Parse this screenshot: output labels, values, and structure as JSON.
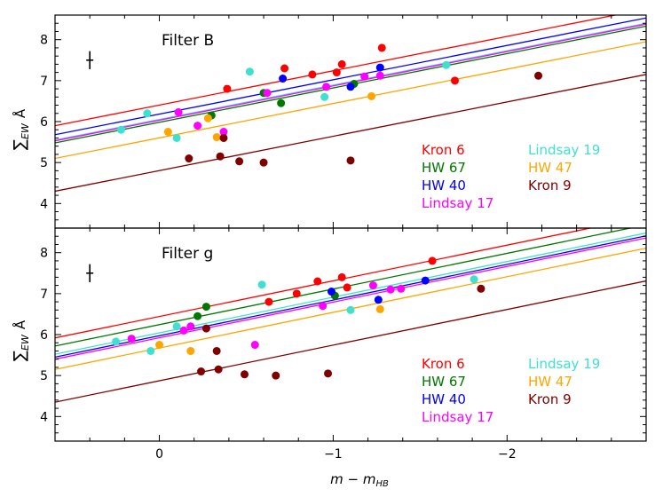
{
  "chart_data": [
    {
      "type": "scatter",
      "panel_label": "Filter B",
      "xlabel": "m − m_HB",
      "ylabel": "ΣEW Å",
      "xlim": [
        0.6,
        -2.8
      ],
      "ylim": [
        3.4,
        8.6
      ],
      "x_ticks": [
        {
          "v": 0,
          "label": "0"
        },
        {
          "v": -1,
          "label": "−1"
        },
        {
          "v": -2,
          "label": "−2"
        }
      ],
      "y_ticks": [
        4,
        5,
        6,
        7,
        8
      ],
      "show_x_tick_labels": false,
      "error_bar": {
        "x": 0.4,
        "y": 7.5,
        "dy": 0.22
      },
      "lines": [
        {
          "cluster": "Kron 6",
          "x0": 0.6,
          "y0": 5.9,
          "x1": -2.8,
          "y1": 8.75
        },
        {
          "cluster": "Lindsay 19",
          "x0": 0.6,
          "y0": 5.55,
          "x1": -2.8,
          "y1": 8.4
        },
        {
          "cluster": "HW 67",
          "x0": 0.6,
          "y0": 5.48,
          "x1": -2.8,
          "y1": 8.33
        },
        {
          "cluster": "HW 40",
          "x0": 0.6,
          "y0": 5.68,
          "x1": -2.8,
          "y1": 8.53
        },
        {
          "cluster": "Lindsay 17",
          "x0": 0.6,
          "y0": 5.53,
          "x1": -2.8,
          "y1": 8.38
        },
        {
          "cluster": "HW 47",
          "x0": 0.6,
          "y0": 5.1,
          "x1": -2.8,
          "y1": 7.95
        },
        {
          "cluster": "Kron 9",
          "x0": 0.6,
          "y0": 4.3,
          "x1": -2.8,
          "y1": 7.15
        }
      ],
      "series": [
        {
          "name": "Kron 6",
          "points": [
            [
              -0.39,
              6.8
            ],
            [
              -0.72,
              7.3
            ],
            [
              -0.88,
              7.15
            ],
            [
              -1.05,
              7.4
            ],
            [
              -1.02,
              7.2
            ],
            [
              -1.28,
              7.8
            ],
            [
              -1.7,
              7.0
            ]
          ]
        },
        {
          "name": "HW 67",
          "points": [
            [
              -0.3,
              6.15
            ],
            [
              -0.6,
              6.7
            ],
            [
              -0.7,
              6.45
            ],
            [
              -1.12,
              6.92
            ]
          ]
        },
        {
          "name": "HW 40",
          "points": [
            [
              -0.71,
              7.05
            ],
            [
              -1.1,
              6.85
            ],
            [
              -1.27,
              7.32
            ]
          ]
        },
        {
          "name": "Lindsay 17",
          "points": [
            [
              -0.11,
              6.23
            ],
            [
              -0.22,
              5.9
            ],
            [
              -0.37,
              5.75
            ],
            [
              -0.62,
              6.7
            ],
            [
              -0.96,
              6.85
            ],
            [
              -1.18,
              7.1
            ],
            [
              -1.27,
              7.12
            ]
          ]
        },
        {
          "name": "Lindsay 19",
          "points": [
            [
              0.07,
              6.2
            ],
            [
              0.22,
              5.8
            ],
            [
              -0.1,
              5.6
            ],
            [
              -0.52,
              7.22
            ],
            [
              -0.95,
              6.6
            ],
            [
              -1.65,
              7.38
            ]
          ]
        },
        {
          "name": "HW 47",
          "points": [
            [
              -0.05,
              5.75
            ],
            [
              -0.28,
              6.08
            ],
            [
              -0.33,
              5.62
            ],
            [
              -1.22,
              6.62
            ]
          ]
        },
        {
          "name": "Kron 9",
          "points": [
            [
              -0.17,
              5.1
            ],
            [
              -0.35,
              5.15
            ],
            [
              -0.37,
              5.6
            ],
            [
              -0.46,
              5.03
            ],
            [
              -0.6,
              5.0
            ],
            [
              -1.1,
              5.05
            ],
            [
              -2.18,
              7.12
            ]
          ]
        }
      ],
      "legend": [
        "Kron 6",
        "HW 67",
        "HW 40",
        "Lindsay 17",
        "Lindsay 19",
        "HW 47",
        "Kron 9"
      ]
    },
    {
      "type": "scatter",
      "panel_label": "Filter g",
      "xlabel": "m − m_HB",
      "ylabel": "ΣEW Å",
      "xlim": [
        0.6,
        -2.8
      ],
      "ylim": [
        3.4,
        8.6
      ],
      "x_ticks": [
        {
          "v": 0,
          "label": "0"
        },
        {
          "v": -1,
          "label": "−1"
        },
        {
          "v": -2,
          "label": "−2"
        }
      ],
      "y_ticks": [
        4,
        5,
        6,
        7,
        8
      ],
      "show_x_tick_labels": true,
      "error_bar": {
        "x": 0.4,
        "y": 7.5,
        "dy": 0.22
      },
      "lines": [
        {
          "cluster": "Kron 6",
          "x0": 0.6,
          "y0": 5.92,
          "x1": -2.8,
          "y1": 8.88
        },
        {
          "cluster": "HW 67",
          "x0": 0.6,
          "y0": 5.72,
          "x1": -2.8,
          "y1": 8.68
        },
        {
          "cluster": "Lindsay 19",
          "x0": 0.6,
          "y0": 5.52,
          "x1": -2.8,
          "y1": 8.48
        },
        {
          "cluster": "HW 40",
          "x0": 0.6,
          "y0": 5.45,
          "x1": -2.8,
          "y1": 8.41
        },
        {
          "cluster": "Lindsay 17",
          "x0": 0.6,
          "y0": 5.4,
          "x1": -2.8,
          "y1": 8.36
        },
        {
          "cluster": "HW 47",
          "x0": 0.6,
          "y0": 5.15,
          "x1": -2.8,
          "y1": 8.11
        },
        {
          "cluster": "Kron 9",
          "x0": 0.6,
          "y0": 4.35,
          "x1": -2.8,
          "y1": 7.31
        }
      ],
      "series": [
        {
          "name": "Kron 6",
          "points": [
            [
              -0.63,
              6.8
            ],
            [
              -0.79,
              7.0
            ],
            [
              -0.91,
              7.3
            ],
            [
              -1.05,
              7.4
            ],
            [
              -1.08,
              7.15
            ],
            [
              -1.57,
              7.8
            ]
          ]
        },
        {
          "name": "HW 67",
          "points": [
            [
              -0.27,
              6.68
            ],
            [
              -0.22,
              6.45
            ],
            [
              -1.01,
              6.95
            ]
          ]
        },
        {
          "name": "HW 40",
          "points": [
            [
              -0.99,
              7.05
            ],
            [
              -1.26,
              6.85
            ],
            [
              -1.53,
              7.32
            ]
          ]
        },
        {
          "name": "Lindsay 17",
          "points": [
            [
              0.16,
              5.9
            ],
            [
              -0.18,
              6.2
            ],
            [
              -0.14,
              6.1
            ],
            [
              -0.55,
              5.75
            ],
            [
              -0.94,
              6.7
            ],
            [
              -1.33,
              7.1
            ],
            [
              -1.39,
              7.12
            ],
            [
              -1.23,
              7.2
            ]
          ]
        },
        {
          "name": "Lindsay 19",
          "points": [
            [
              0.25,
              5.83
            ],
            [
              -0.1,
              6.2
            ],
            [
              0.05,
              5.6
            ],
            [
              -0.59,
              7.22
            ],
            [
              -1.1,
              6.6
            ],
            [
              -1.81,
              7.35
            ]
          ]
        },
        {
          "name": "HW 47",
          "points": [
            [
              -0.18,
              5.6
            ],
            [
              0.0,
              5.75
            ],
            [
              -1.27,
              6.62
            ]
          ]
        },
        {
          "name": "Kron 9",
          "points": [
            [
              -0.24,
              5.1
            ],
            [
              -0.34,
              5.15
            ],
            [
              -0.33,
              5.6
            ],
            [
              -0.49,
              5.03
            ],
            [
              -0.67,
              5.0
            ],
            [
              -0.97,
              5.05
            ],
            [
              -1.85,
              7.12
            ],
            [
              -0.27,
              6.15
            ]
          ]
        }
      ],
      "legend": [
        "Kron 6",
        "HW 67",
        "HW 40",
        "Lindsay 17",
        "Lindsay 19",
        "HW 47",
        "Kron 9"
      ]
    }
  ],
  "colors": {
    "Kron 6": "#ff0000",
    "HW 67": "#007700",
    "HW 40": "#0000ff",
    "Lindsay 17": "#ff00ff",
    "Lindsay 19": "#40e0d0",
    "HW 47": "#ffa500",
    "Kron 9": "#800000"
  }
}
